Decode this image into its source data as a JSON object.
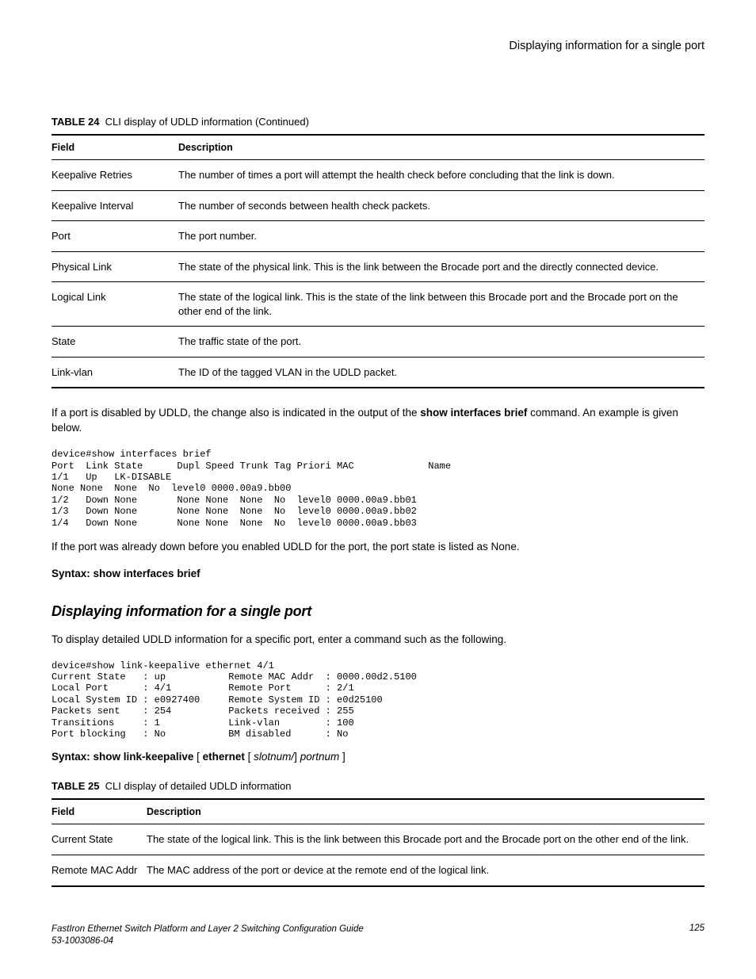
{
  "running_head": "Displaying information for a single port",
  "table24": {
    "label": "TABLE 24",
    "title": "CLI display of UDLD information (Continued)",
    "head_field": "Field",
    "head_desc": "Description",
    "rows": [
      {
        "field": "Keepalive Retries",
        "desc": "The number of times a port will attempt the health check before concluding that the link is down."
      },
      {
        "field": "Keepalive Interval",
        "desc": "The number of seconds between health check packets."
      },
      {
        "field": "Port",
        "desc": "The port number."
      },
      {
        "field": "Physical Link",
        "desc": "The state of the physical link. This is the link between the Brocade port and the directly connected device."
      },
      {
        "field": "Logical Link",
        "desc": "The state of the logical link. This is the state of the link between this Brocade port and the Brocade port on the other end of the link."
      },
      {
        "field": "State",
        "desc": "The traffic state of the port."
      },
      {
        "field": "Link-vlan",
        "desc": "The ID of the tagged VLAN in the UDLD packet."
      }
    ]
  },
  "para1_a": "If a port is disabled by UDLD, the change also is indicated in the output of the ",
  "para1_b": "show interfaces brief",
  "para1_c": " command. An example is given below.",
  "cli1": "device#show interfaces brief\nPort  Link State      Dupl Speed Trunk Tag Priori MAC             Name\n1/1   Up   LK-DISABLE\nNone None  None  No  level0 0000.00a9.bb00\n1/2   Down None       None None  None  No  level0 0000.00a9.bb01\n1/3   Down None       None None  None  No  level0 0000.00a9.bb02\n1/4   Down None       None None  None  No  level0 0000.00a9.bb03",
  "para2": "If the port was already down before you enabled UDLD for the port, the port state is listed as None.",
  "syntax1_label": "Syntax: ",
  "syntax1_cmd": "show interfaces brief",
  "section_heading": "Displaying information for a single port",
  "para3": "To display detailed UDLD information for a specific port, enter a command such as the following.",
  "cli2": "device#show link-keepalive ethernet 4/1\nCurrent State   : up           Remote MAC Addr  : 0000.00d2.5100\nLocal Port      : 4/1          Remote Port      : 2/1\nLocal System ID : e0927400     Remote System ID : e0d25100\nPackets sent    : 254          Packets received : 255\nTransitions     : 1            Link-vlan        : 100\nPort blocking   : No           BM disabled      : No",
  "syntax2": {
    "label": "Syntax: ",
    "cmd": "show link-keepalive",
    "br1": " [ ",
    "kw2": "ethernet",
    "br2": " [ ",
    "arg1": "slotnum/",
    "br3": "] ",
    "arg2": "portnum",
    "br4": " ]"
  },
  "table25": {
    "label": "TABLE 25",
    "title": "CLI display of detailed UDLD information",
    "head_field": "Field",
    "head_desc": "Description",
    "rows": [
      {
        "field": "Current State",
        "desc": "The state of the logical link. This is the link between this Brocade port and the Brocade port on the other end of the link."
      },
      {
        "field": "Remote MAC Addr",
        "desc": "The MAC address of the port or device at the remote end of the logical link."
      }
    ]
  },
  "footer": {
    "guide": "FastIron Ethernet Switch Platform and Layer 2 Switching Configuration Guide",
    "docnum": "53-1003086-04",
    "page": "125"
  }
}
